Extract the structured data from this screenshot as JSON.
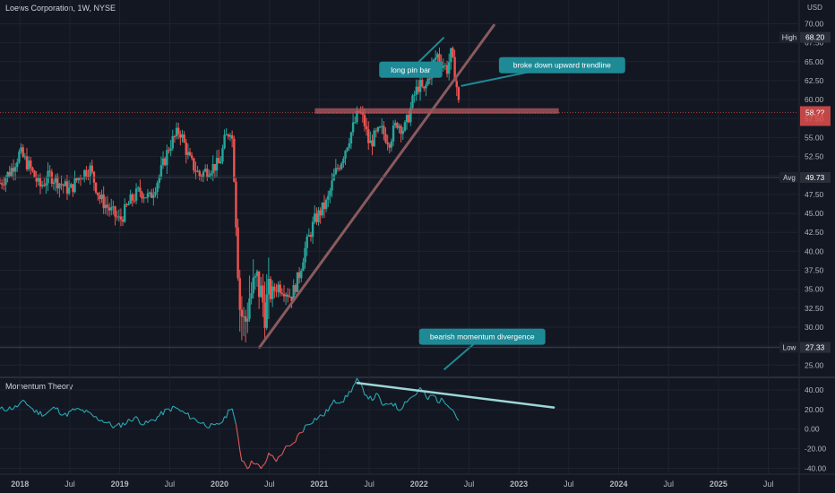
{
  "header": {
    "title": "Loews Corporation, 1W, NYSE",
    "currency": "USD"
  },
  "indicator": {
    "title": "Momentum Theory"
  },
  "colors": {
    "background": "#131722",
    "up": "#26a69a",
    "down": "#ef5350",
    "trendline": "#8a5a5e",
    "resistance": "#b35b62",
    "callout": "#1e8a96",
    "divergence_line": "#9dd6d8",
    "momentum_up": "#2aa8b3",
    "momentum_down": "#e05a5a"
  },
  "chart_data": [
    {
      "type": "candlestick",
      "ylim": [
        23.5,
        71
      ],
      "y_ticks": [
        "25.00",
        "27.50",
        "30.00",
        "32.50",
        "35.00",
        "37.50",
        "40.00",
        "42.50",
        "45.00",
        "47.50",
        "50.00",
        "52.50",
        "55.00",
        "57.50",
        "60.00",
        "62.50",
        "65.00",
        "67.50",
        "70.00"
      ],
      "x_labels": [
        "2018",
        "Jul",
        "2019",
        "Jul",
        "2020",
        "Jul",
        "2021",
        "Jul",
        "2022",
        "Jul",
        "2023",
        "Jul",
        "2024",
        "Jul",
        "2025",
        "Jul"
      ],
      "x_range": [
        2017.8,
        2025.8
      ],
      "x_label_years": [
        2018.0,
        2018.5,
        2019.0,
        2019.5,
        2020.0,
        2020.5,
        2021.0,
        2021.5,
        2022.0,
        2022.5,
        2023.0,
        2023.5,
        2024.0,
        2024.5,
        2025.0,
        2025.5
      ],
      "price_badges": [
        {
          "label": "High",
          "value": "68.20",
          "y": 68.2
        },
        {
          "label": "",
          "value": "58.??",
          "y": 58.3
        },
        {
          "label": "Avg",
          "value": "49.73",
          "y": 49.73
        },
        {
          "label": "Low",
          "value": "27.33",
          "y": 27.33
        }
      ],
      "series_close": [
        [
          2017.8,
          49.0
        ],
        [
          2017.9,
          50.5
        ],
        [
          2018.0,
          53.0
        ],
        [
          2018.1,
          51.0
        ],
        [
          2018.2,
          48.5
        ],
        [
          2018.3,
          50.0
        ],
        [
          2018.4,
          49.0
        ],
        [
          2018.5,
          48.0
        ],
        [
          2018.6,
          50.0
        ],
        [
          2018.7,
          51.0
        ],
        [
          2018.8,
          47.0
        ],
        [
          2018.9,
          45.5
        ],
        [
          2019.0,
          44.0
        ],
        [
          2019.1,
          46.5
        ],
        [
          2019.2,
          48.0
        ],
        [
          2019.3,
          47.0
        ],
        [
          2019.4,
          50.0
        ],
        [
          2019.5,
          54.0
        ],
        [
          2019.6,
          56.0
        ],
        [
          2019.7,
          52.0
        ],
        [
          2019.8,
          50.0
        ],
        [
          2019.9,
          51.0
        ],
        [
          2020.0,
          51.5
        ],
        [
          2020.05,
          54.5
        ],
        [
          2020.12,
          56.5
        ],
        [
          2020.17,
          44.0
        ],
        [
          2020.2,
          33.0
        ],
        [
          2020.25,
          30.0
        ],
        [
          2020.3,
          34.0
        ],
        [
          2020.38,
          36.0
        ],
        [
          2020.45,
          32.5
        ],
        [
          2020.5,
          34.0
        ],
        [
          2020.58,
          35.5
        ],
        [
          2020.65,
          35.0
        ],
        [
          2020.72,
          34.0
        ],
        [
          2020.8,
          37.0
        ],
        [
          2020.85,
          40.0
        ],
        [
          2020.9,
          42.0
        ],
        [
          2020.95,
          44.0
        ],
        [
          2021.0,
          45.0
        ],
        [
          2021.08,
          46.5
        ],
        [
          2021.15,
          50.0
        ],
        [
          2021.22,
          52.0
        ],
        [
          2021.3,
          55.0
        ],
        [
          2021.4,
          58.5
        ],
        [
          2021.45,
          57.0
        ],
        [
          2021.5,
          54.0
        ],
        [
          2021.55,
          55.0
        ],
        [
          2021.62,
          56.0
        ],
        [
          2021.7,
          54.5
        ],
        [
          2021.78,
          57.0
        ],
        [
          2021.85,
          56.0
        ],
        [
          2021.9,
          58.0
        ],
        [
          2021.95,
          60.5
        ],
        [
          2022.0,
          62.0
        ],
        [
          2022.05,
          61.0
        ],
        [
          2022.12,
          64.0
        ],
        [
          2022.18,
          66.0
        ],
        [
          2022.22,
          65.0
        ],
        [
          2022.28,
          64.0
        ],
        [
          2022.32,
          66.0
        ],
        [
          2022.37,
          62.5
        ],
        [
          2022.4,
          59.0
        ]
      ],
      "annotations": {
        "resistance": {
          "x": [
            2021.0,
            2023.4
          ],
          "y": 58.5
        },
        "trendline": [
          [
            2020.4,
            27.33
          ],
          [
            2022.75,
            69.8
          ]
        ],
        "callouts": [
          {
            "id": "pin-bar",
            "text": "long pin bar",
            "x": 2021.6,
            "y": 65.0,
            "tip_x": 2022.25,
            "tip_y": 68.2
          },
          {
            "id": "trend-break",
            "text": "broke down upward trendline",
            "x": 2022.8,
            "y": 65.6,
            "tip_x": 2022.42,
            "tip_y": 61.8
          },
          {
            "id": "divergence",
            "text": "bearish momentum divergence",
            "x": 2022.0,
            "y": 29.8,
            "tip_x": 2022.25,
            "tip_y": 24.4
          }
        ]
      }
    },
    {
      "type": "line",
      "name": "Momentum Theory",
      "ylim": [
        -45,
        50
      ],
      "y_ticks": [
        "40.00",
        "20.00",
        "0.00",
        "-20.00",
        "-40.00"
      ],
      "y_tick_values": [
        40,
        20,
        0,
        -20,
        -40
      ],
      "series": [
        [
          2017.8,
          20
        ],
        [
          2017.95,
          22
        ],
        [
          2018.05,
          28
        ],
        [
          2018.15,
          18
        ],
        [
          2018.25,
          15
        ],
        [
          2018.35,
          22
        ],
        [
          2018.45,
          14
        ],
        [
          2018.55,
          20
        ],
        [
          2018.65,
          18
        ],
        [
          2018.75,
          12
        ],
        [
          2018.85,
          8
        ],
        [
          2018.95,
          2
        ],
        [
          2019.05,
          6
        ],
        [
          2019.15,
          12
        ],
        [
          2019.25,
          5
        ],
        [
          2019.35,
          10
        ],
        [
          2019.45,
          18
        ],
        [
          2019.55,
          22
        ],
        [
          2019.65,
          16
        ],
        [
          2019.75,
          10
        ],
        [
          2019.85,
          5
        ],
        [
          2019.95,
          2
        ],
        [
          2020.05,
          10
        ],
        [
          2020.12,
          25
        ],
        [
          2020.17,
          0
        ],
        [
          2020.22,
          -30
        ],
        [
          2020.28,
          -38
        ],
        [
          2020.35,
          -32
        ],
        [
          2020.42,
          -42
        ],
        [
          2020.5,
          -25
        ],
        [
          2020.58,
          -32
        ],
        [
          2020.65,
          -20
        ],
        [
          2020.72,
          -18
        ],
        [
          2020.8,
          -5
        ],
        [
          2020.88,
          5
        ],
        [
          2020.95,
          10
        ],
        [
          2021.05,
          15
        ],
        [
          2021.15,
          28
        ],
        [
          2021.25,
          30
        ],
        [
          2021.32,
          40
        ],
        [
          2021.38,
          50
        ],
        [
          2021.45,
          38
        ],
        [
          2021.52,
          30
        ],
        [
          2021.58,
          35
        ],
        [
          2021.65,
          22
        ],
        [
          2021.72,
          28
        ],
        [
          2021.8,
          20
        ],
        [
          2021.88,
          30
        ],
        [
          2021.95,
          34
        ],
        [
          2022.02,
          42
        ],
        [
          2022.08,
          30
        ],
        [
          2022.14,
          35
        ],
        [
          2022.2,
          28
        ],
        [
          2022.25,
          30
        ],
        [
          2022.3,
          25
        ],
        [
          2022.35,
          18
        ],
        [
          2022.4,
          8
        ]
      ],
      "divergence_line": [
        [
          2021.38,
          47
        ],
        [
          2023.35,
          22
        ]
      ]
    }
  ]
}
